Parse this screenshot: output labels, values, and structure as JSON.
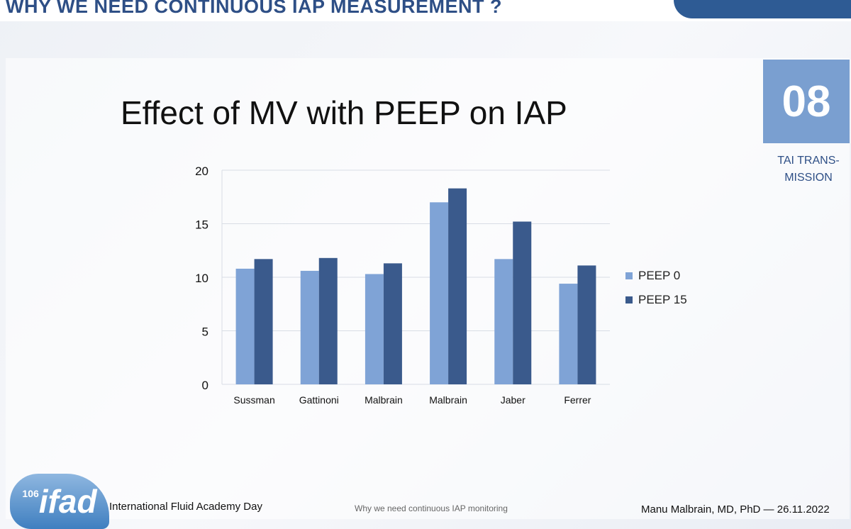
{
  "header": {
    "title": "WHY WE NEED CONTINUOUS IAP MEASUREMENT ?"
  },
  "badge": {
    "number": "08",
    "label_line1": "TAI TRANS-",
    "label_line2": "MISSION"
  },
  "footer": {
    "logo_number": "106",
    "logo_text": "ifad",
    "event": "International Fluid Academy Day",
    "topic": "Why we need continuous IAP monitoring",
    "author": "Manu Malbrain, MD, PhD — 26.11.2022"
  },
  "chart_data": {
    "type": "bar",
    "title": "Effect of MV with PEEP on IAP",
    "categories": [
      "Sussman",
      "Gattinoni",
      "Malbrain",
      "Malbrain",
      "Jaber",
      "Ferrer"
    ],
    "series": [
      {
        "name": "PEEP 0",
        "values": [
          10.8,
          10.6,
          10.3,
          17.0,
          11.7,
          9.4
        ],
        "color": "#7fa3d6"
      },
      {
        "name": "PEEP 15",
        "values": [
          11.7,
          11.8,
          11.3,
          18.3,
          15.2,
          11.1
        ],
        "color": "#3a5a8c"
      }
    ],
    "ylim": [
      0,
      20
    ],
    "yticks": [
      "0",
      "5",
      "10",
      "15",
      "20"
    ],
    "xlabel": "",
    "ylabel": "",
    "grid": true,
    "legend": "right"
  }
}
